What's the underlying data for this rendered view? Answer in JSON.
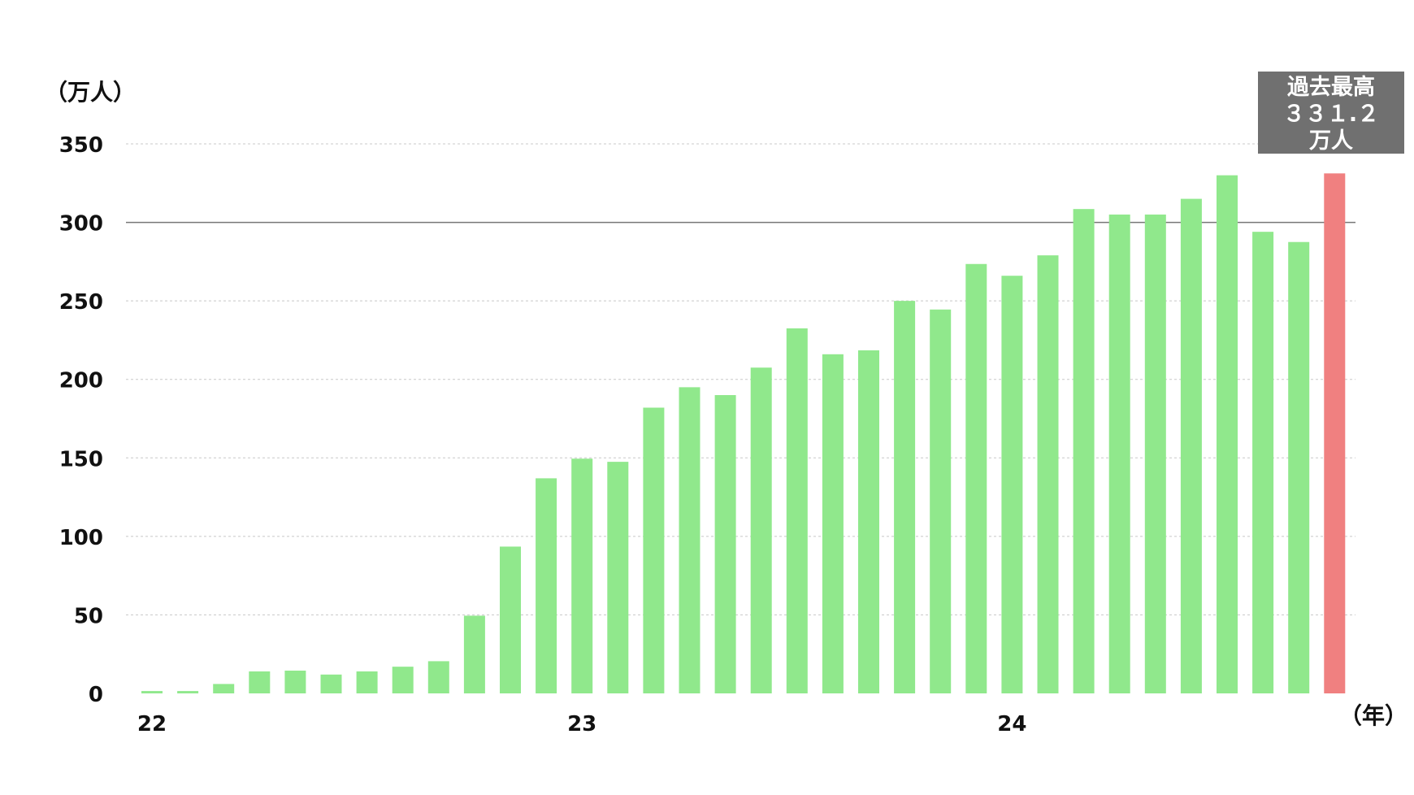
{
  "chart_data": {
    "type": "bar",
    "y_unit": "（万人）",
    "x_unit": "（年）",
    "ylim": [
      0,
      350
    ],
    "y_ticks": [
      "0",
      "50",
      "100",
      "150",
      "200",
      "250",
      "300",
      "350"
    ],
    "x_tick_labels": [
      {
        "label": "22",
        "index": 0
      },
      {
        "label": "23",
        "index": 12
      },
      {
        "label": "24",
        "index": 24
      }
    ],
    "values": [
      1.5,
      1.5,
      6,
      14,
      14.5,
      12,
      14,
      17,
      20.5,
      49.5,
      93.5,
      137,
      149.5,
      147.5,
      182,
      195,
      190,
      207.5,
      232.5,
      216,
      218.5,
      250,
      244.5,
      273.5,
      266,
      279,
      308.5,
      305,
      305,
      315,
      330,
      294,
      287.5,
      331.2
    ],
    "colors": {
      "bar": "#90e88c",
      "highlight": "#f08080",
      "callout_bg": "#707070"
    },
    "highlight_index": 33,
    "grid": true,
    "reference_line": 300,
    "callout": {
      "line1": "過去最高",
      "line2": "３３１.２",
      "line3": "万人"
    }
  }
}
